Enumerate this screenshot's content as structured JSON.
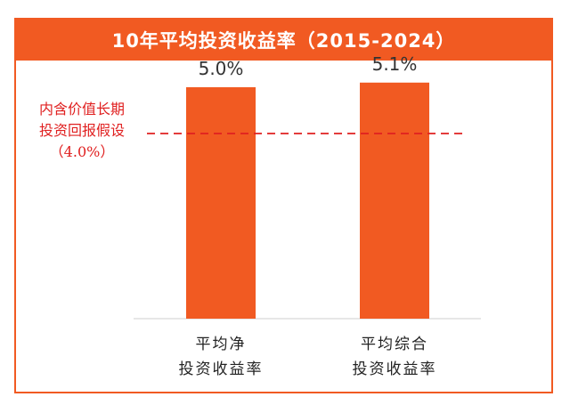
{
  "chart_data": {
    "type": "bar",
    "title": "10年平均投资收益率（2015-2024）",
    "categories": [
      [
        "平均净",
        "投资收益率"
      ],
      [
        "平均综合",
        "投资收益率"
      ]
    ],
    "values": [
      5.0,
      5.1
    ],
    "value_labels": [
      "5.0%",
      "5.1%"
    ],
    "ylim": [
      0,
      6.5
    ],
    "bar_color": "#f15a22",
    "reference_line": {
      "value": 4.0,
      "label_lines": [
        "内含价值长期",
        "投资回报假设",
        "（4.0%）"
      ],
      "color": "#e02020",
      "style": "dashed"
    },
    "grid": false
  }
}
